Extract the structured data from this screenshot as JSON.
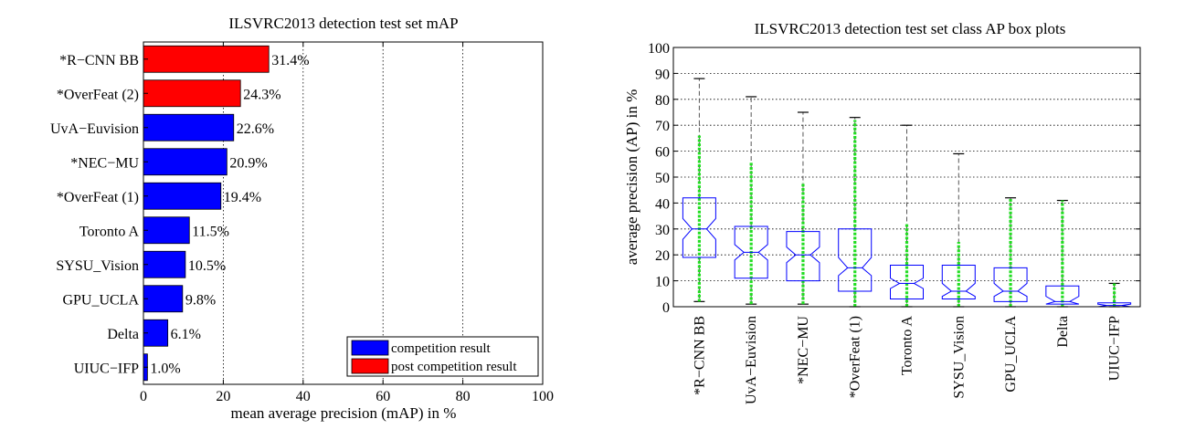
{
  "colors": {
    "competition": "#0000ff",
    "post_competition": "#ff0000",
    "whisker": "#555555",
    "points": "#22dd22",
    "box": "#0000ff"
  },
  "chart_data": [
    {
      "type": "bar",
      "orientation": "horizontal",
      "title": "ILSVRC2013 detection test set mAP",
      "xlabel": "mean average precision (mAP) in %",
      "ylabel": "",
      "xlim": [
        0,
        100
      ],
      "xticks": [
        0,
        20,
        40,
        60,
        80,
        100
      ],
      "grid": "x",
      "categories": [
        "*R−CNN BB",
        "*OverFeat (2)",
        "UvA−Euvision",
        "*NEC−MU",
        "*OverFeat (1)",
        "Toronto A",
        "SYSU_Vision",
        "GPU_UCLA",
        "Delta",
        "UIUC−IFP"
      ],
      "values": [
        31.4,
        24.3,
        22.6,
        20.9,
        19.4,
        11.5,
        10.5,
        9.8,
        6.1,
        1.0
      ],
      "value_labels": [
        "31.4%",
        "24.3%",
        "22.6%",
        "20.9%",
        "19.4%",
        "11.5%",
        "10.5%",
        "9.8%",
        "6.1%",
        "1.0%"
      ],
      "groups": [
        "post",
        "post",
        "comp",
        "comp",
        "comp",
        "comp",
        "comp",
        "comp",
        "comp",
        "comp"
      ],
      "legend": {
        "position": "bottom-right",
        "entries": [
          {
            "label": "competition result",
            "group": "comp"
          },
          {
            "label": "post competition result",
            "group": "post"
          }
        ]
      }
    },
    {
      "type": "box",
      "title": "ILSVRC2013 detection test set class AP box plots",
      "xlabel": "",
      "ylabel": "average precision (AP) in %",
      "ylim": [
        0,
        100
      ],
      "yticks": [
        0,
        10,
        20,
        30,
        40,
        50,
        60,
        70,
        80,
        90,
        100
      ],
      "grid": "y",
      "categories": [
        "*R−CNN BB",
        "UvA−Euvision",
        "*NEC−MU",
        "*OverFeat (1)",
        "Toronto A",
        "SYSU_Vision",
        "GPU_UCLA",
        "Delta",
        "UIUC−IFP"
      ],
      "boxes": [
        {
          "min": 2,
          "q1": 19,
          "median": 30,
          "q3": 42,
          "max": 88,
          "notch_lo": 26,
          "notch_hi": 34,
          "points_top": 66
        },
        {
          "min": 1,
          "q1": 11,
          "median": 21,
          "q3": 31,
          "max": 81,
          "notch_lo": 18,
          "notch_hi": 24,
          "points_top": 56
        },
        {
          "min": 1,
          "q1": 10,
          "median": 20,
          "q3": 29,
          "max": 75,
          "notch_lo": 17,
          "notch_hi": 23,
          "points_top": 48
        },
        {
          "min": 0,
          "q1": 6,
          "median": 15,
          "q3": 30,
          "max": 73,
          "notch_lo": 12,
          "notch_hi": 19,
          "points_top": 72
        },
        {
          "min": 0,
          "q1": 3,
          "median": 9,
          "q3": 16,
          "max": 70,
          "notch_lo": 7,
          "notch_hi": 11,
          "points_top": 32
        },
        {
          "min": 0,
          "q1": 3,
          "median": 6,
          "q3": 16,
          "max": 59,
          "notch_lo": 4,
          "notch_hi": 9,
          "points_top": 25
        },
        {
          "min": 0,
          "q1": 2,
          "median": 6,
          "q3": 15,
          "max": 42,
          "notch_lo": 4,
          "notch_hi": 9,
          "points_top": 42
        },
        {
          "min": 0,
          "q1": 1,
          "median": 2,
          "q3": 8,
          "max": 41,
          "notch_lo": 1,
          "notch_hi": 4,
          "points_top": 41
        },
        {
          "min": 0,
          "q1": 0,
          "median": 0.5,
          "q3": 1.5,
          "max": 9,
          "notch_lo": 0,
          "notch_hi": 1,
          "points_top": 9
        }
      ]
    }
  ]
}
